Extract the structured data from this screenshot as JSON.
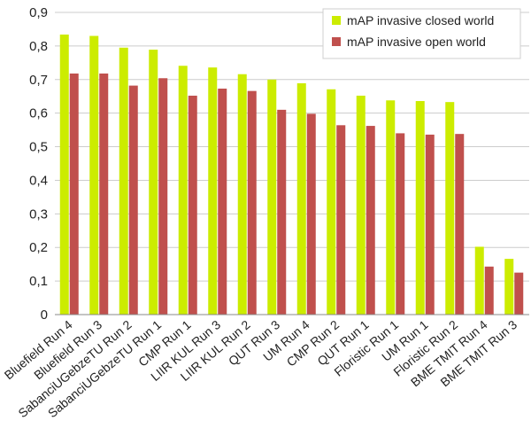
{
  "chart_data": {
    "type": "bar",
    "categories": [
      "Bluefield Run 4",
      "Bluefield Run 3",
      "SabanciUGebzeTU Run 2",
      "SabanciUGebzeTU Run 1",
      "CMP Run 1",
      "LIIR KUL Run 3",
      "LIIR KUL Run 2",
      "QUT Run 3",
      "UM Run 4",
      "CMP Run 2",
      "QUT Run 1",
      "Floristic Run 1",
      "UM Run 1",
      "Floristic Run 2",
      "BME TMIT Run 4",
      "BME TMIT Run 3"
    ],
    "series": [
      {
        "name": "mAP invasive closed world",
        "color": "#ccec00",
        "values": [
          0.834,
          0.83,
          0.795,
          0.789,
          0.741,
          0.736,
          0.716,
          0.7,
          0.689,
          0.671,
          0.652,
          0.638,
          0.636,
          0.633,
          0.202,
          0.166
        ]
      },
      {
        "name": "mAP invasive open world",
        "color": "#c0504d",
        "values": [
          0.718,
          0.718,
          0.682,
          0.704,
          0.652,
          0.673,
          0.666,
          0.61,
          0.598,
          0.564,
          0.562,
          0.54,
          0.536,
          0.538,
          0.143,
          0.125
        ]
      }
    ],
    "ylim": [
      0,
      0.9
    ],
    "yticks": [
      "0",
      "0,1",
      "0,2",
      "0,3",
      "0,4",
      "0,5",
      "0,6",
      "0,7",
      "0,8",
      "0,9"
    ],
    "grid": true,
    "legend_position": "top-right",
    "title": "",
    "xlabel": "",
    "ylabel": ""
  }
}
